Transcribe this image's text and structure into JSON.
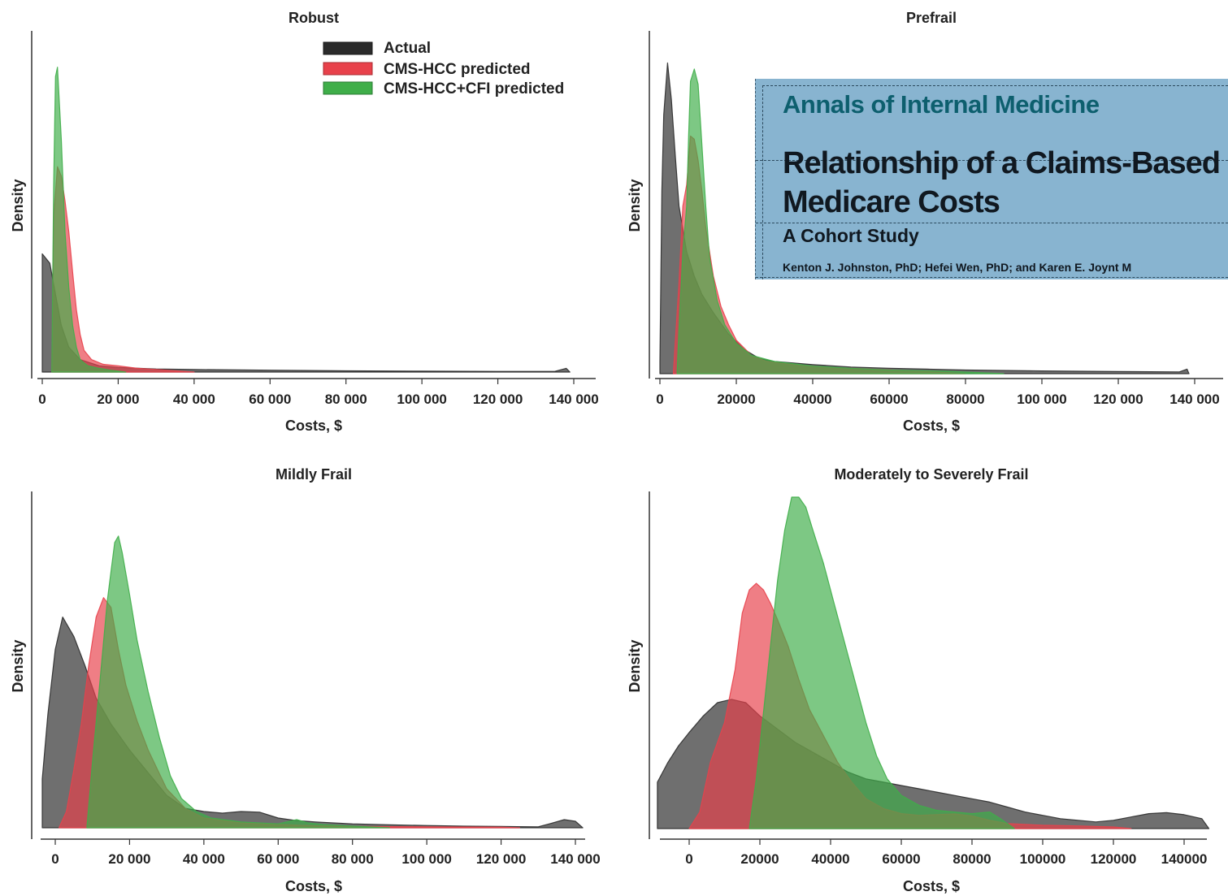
{
  "legend": {
    "items": [
      {
        "label": "Actual",
        "color": "#2b2b2b"
      },
      {
        "label": "CMS-HCC predicted",
        "color": "#e8414b"
      },
      {
        "label": "CMS-HCC+CFI predicted",
        "color": "#3fae49"
      }
    ]
  },
  "banner": {
    "journal": "Annals of Internal Medicine",
    "title_line1": "Relationship of a Claims-Based Frai",
    "title_line2": "Medicare Costs",
    "subtitle": "A Cohort Study",
    "authors": "Kenton J. Johnston, PhD; Hefei Wen, PhD; and Karen E. Joynt M",
    "background_color": "#88b4d0"
  },
  "chart_data": [
    {
      "type": "area",
      "title": "Robust",
      "xlabel": "Costs, $",
      "ylabel": "Density",
      "xlim": [
        -1000,
        145000
      ],
      "ylim": [
        0,
        1.0
      ],
      "xticks": [
        0,
        20000,
        40000,
        60000,
        80000,
        100000,
        120000,
        140000
      ],
      "xtick_labels": [
        "0",
        "20 000",
        "40 000",
        "60 000",
        "80 000",
        "100 000",
        "120 000",
        "140 000"
      ],
      "series": [
        {
          "name": "Actual",
          "color": "#2b2b2b",
          "x": [
            0,
            2000,
            3500,
            5000,
            7000,
            10000,
            15000,
            20000,
            30000,
            40000,
            60000,
            80000,
            100000,
            120000,
            135000,
            138000,
            139000
          ],
          "y": [
            0.38,
            0.35,
            0.25,
            0.15,
            0.08,
            0.04,
            0.02,
            0.015,
            0.01,
            0.008,
            0.006,
            0.004,
            0.003,
            0.002,
            0.002,
            0.012,
            0.0
          ]
        },
        {
          "name": "CMS-HCC predicted",
          "color": "#e8414b",
          "x": [
            2500,
            3000,
            4000,
            5000,
            6000,
            7000,
            8000,
            9000,
            10000,
            11000,
            13000,
            16000,
            20000,
            25000,
            30000,
            35000,
            40000
          ],
          "y": [
            0.0,
            0.5,
            0.66,
            0.63,
            0.55,
            0.45,
            0.32,
            0.2,
            0.12,
            0.07,
            0.04,
            0.025,
            0.02,
            0.012,
            0.008,
            0.004,
            0.0
          ]
        },
        {
          "name": "CMS-HCC+CFI predicted",
          "color": "#3fae49",
          "x": [
            2500,
            3000,
            3500,
            4000,
            5000,
            6000,
            7000,
            8000,
            9000,
            10000,
            12000,
            15000,
            18000,
            22000
          ],
          "y": [
            0.0,
            0.6,
            0.95,
            0.98,
            0.75,
            0.45,
            0.27,
            0.15,
            0.08,
            0.04,
            0.02,
            0.012,
            0.006,
            0.0
          ]
        }
      ]
    },
    {
      "type": "area",
      "title": "Prefrail",
      "xlabel": "Costs, $",
      "ylabel": "Density",
      "xlim": [
        -1000,
        145000
      ],
      "ylim": [
        0,
        1.0
      ],
      "xticks": [
        0,
        20000,
        40000,
        60000,
        80000,
        100000,
        120000,
        140000
      ],
      "xtick_labels": [
        "0",
        "20000",
        "40000",
        "60000",
        "80000",
        "100 000",
        "120 000",
        "140 000"
      ],
      "series": [
        {
          "name": "Actual",
          "color": "#2b2b2b",
          "x": [
            0,
            500,
            1000,
            2000,
            3000,
            4000,
            5000,
            7000,
            9000,
            11000,
            14000,
            18000,
            22000,
            26000,
            30000,
            35000,
            40000,
            50000,
            60000,
            70000,
            80000,
            100000,
            120000,
            136000,
            138000,
            138500
          ],
          "y": [
            0.04,
            0.6,
            0.85,
            1.02,
            0.9,
            0.72,
            0.55,
            0.4,
            0.32,
            0.26,
            0.2,
            0.13,
            0.08,
            0.05,
            0.04,
            0.035,
            0.03,
            0.022,
            0.018,
            0.015,
            0.012,
            0.009,
            0.007,
            0.006,
            0.015,
            0.0
          ]
        },
        {
          "name": "CMS-HCC predicted",
          "color": "#e8414b",
          "x": [
            3500,
            4000,
            5000,
            6000,
            7000,
            8000,
            9000,
            10000,
            11000,
            12000,
            14000,
            16000,
            18000,
            20000,
            24000,
            28000,
            35000,
            45000,
            55000,
            65000,
            80000
          ],
          "y": [
            0.0,
            0.1,
            0.3,
            0.55,
            0.62,
            0.78,
            0.77,
            0.7,
            0.6,
            0.48,
            0.32,
            0.22,
            0.16,
            0.11,
            0.06,
            0.04,
            0.03,
            0.02,
            0.015,
            0.01,
            0.0
          ]
        },
        {
          "name": "CMS-HCC+CFI predicted",
          "color": "#3fae49",
          "x": [
            4500,
            5000,
            6000,
            7000,
            7500,
            8000,
            9000,
            10000,
            11000,
            12000,
            13000,
            15000,
            17000,
            20000,
            24000,
            30000,
            40000,
            50000,
            60000,
            75000,
            90000
          ],
          "y": [
            0.0,
            0.15,
            0.4,
            0.55,
            0.78,
            0.96,
            1.0,
            0.95,
            0.75,
            0.55,
            0.38,
            0.24,
            0.16,
            0.1,
            0.06,
            0.04,
            0.025,
            0.018,
            0.012,
            0.008,
            0.0
          ]
        }
      ]
    },
    {
      "type": "area",
      "title": "Mildly Frail",
      "xlabel": "Costs, $",
      "ylabel": "Density",
      "xlim": [
        -3500,
        142000
      ],
      "ylim": [
        0,
        1.0
      ],
      "xticks": [
        0,
        20000,
        40000,
        60000,
        80000,
        100000,
        120000,
        140000
      ],
      "xtick_labels": [
        "0",
        "20 000",
        "40 000",
        "60 000",
        "80 000",
        "100 000",
        "120 000",
        "140 000"
      ],
      "series": [
        {
          "name": "Actual",
          "color": "#2b2b2b",
          "x": [
            -3500,
            -2000,
            0,
            2000,
            5000,
            8000,
            11000,
            15000,
            20000,
            25000,
            30000,
            35000,
            40000,
            45000,
            50000,
            55000,
            60000,
            65000,
            70000,
            80000,
            90000,
            100000,
            110000,
            120000,
            130000,
            133000,
            137000,
            140000,
            142000
          ],
          "y": [
            0.15,
            0.35,
            0.55,
            0.65,
            0.59,
            0.5,
            0.4,
            0.32,
            0.24,
            0.17,
            0.1,
            0.06,
            0.05,
            0.045,
            0.05,
            0.048,
            0.03,
            0.022,
            0.018,
            0.012,
            0.009,
            0.007,
            0.005,
            0.004,
            0.003,
            0.012,
            0.025,
            0.02,
            0.0
          ]
        },
        {
          "name": "CMS-HCC predicted",
          "color": "#e8414b",
          "x": [
            1000,
            3000,
            5000,
            7000,
            9000,
            11000,
            13000,
            15000,
            17000,
            19000,
            22000,
            25000,
            30000,
            35000,
            40000,
            50000,
            60000,
            70000,
            80000,
            100000,
            120000,
            125000
          ],
          "y": [
            0.0,
            0.05,
            0.18,
            0.32,
            0.5,
            0.65,
            0.71,
            0.68,
            0.55,
            0.44,
            0.33,
            0.24,
            0.12,
            0.06,
            0.03,
            0.015,
            0.01,
            0.006,
            0.004,
            0.003,
            0.002,
            0.0
          ]
        },
        {
          "name": "CMS-HCC+CFI predicted",
          "color": "#3fae49",
          "x": [
            8500,
            10000,
            12000,
            14000,
            16000,
            17000,
            18000,
            20000,
            22000,
            25000,
            28000,
            31000,
            34000,
            38000,
            42000,
            50000,
            60000,
            65000,
            68000,
            72000,
            80000,
            90000
          ],
          "y": [
            0.0,
            0.2,
            0.45,
            0.7,
            0.88,
            0.9,
            0.85,
            0.72,
            0.58,
            0.42,
            0.28,
            0.16,
            0.09,
            0.05,
            0.03,
            0.018,
            0.012,
            0.025,
            0.015,
            0.01,
            0.005,
            0.0
          ]
        }
      ]
    },
    {
      "type": "area",
      "title": "Moderately to Severely Frail",
      "xlabel": "Costs, $",
      "ylabel": "Density",
      "xlim": [
        -9000,
        147000
      ],
      "ylim": [
        0,
        1.0
      ],
      "xticks": [
        0,
        20000,
        40000,
        60000,
        80000,
        100000,
        120000,
        140000
      ],
      "xtick_labels": [
        "0",
        "20000",
        "40000",
        "60000",
        "80000",
        "100000",
        "120000",
        "140000"
      ],
      "series": [
        {
          "name": "Actual",
          "color": "#2b2b2b",
          "x": [
            -9000,
            -6000,
            -3000,
            0,
            4000,
            8000,
            12000,
            16000,
            20000,
            25000,
            30000,
            35000,
            40000,
            45000,
            50000,
            55000,
            60000,
            65000,
            70000,
            75000,
            80000,
            85000,
            90000,
            95000,
            100000,
            105000,
            110000,
            115000,
            120000,
            125000,
            130000,
            135000,
            140000,
            145000,
            147000
          ],
          "y": [
            0.14,
            0.2,
            0.25,
            0.29,
            0.34,
            0.38,
            0.39,
            0.38,
            0.34,
            0.3,
            0.26,
            0.23,
            0.2,
            0.17,
            0.15,
            0.14,
            0.13,
            0.12,
            0.11,
            0.1,
            0.09,
            0.08,
            0.065,
            0.05,
            0.04,
            0.03,
            0.025,
            0.02,
            0.025,
            0.035,
            0.045,
            0.048,
            0.042,
            0.03,
            0.0
          ]
        },
        {
          "name": "CMS-HCC predicted",
          "color": "#e8414b",
          "x": [
            0,
            3000,
            6000,
            10000,
            13000,
            15000,
            17000,
            19000,
            21000,
            23000,
            25000,
            28000,
            31000,
            34000,
            38000,
            42000,
            46000,
            50000,
            55000,
            60000,
            65000,
            70000,
            75000,
            80000,
            85000,
            90000,
            100000,
            110000,
            120000,
            125000
          ],
          "y": [
            0.0,
            0.05,
            0.2,
            0.32,
            0.48,
            0.65,
            0.72,
            0.74,
            0.72,
            0.68,
            0.63,
            0.55,
            0.45,
            0.36,
            0.28,
            0.2,
            0.14,
            0.09,
            0.06,
            0.045,
            0.04,
            0.042,
            0.044,
            0.038,
            0.025,
            0.015,
            0.01,
            0.008,
            0.005,
            0.0
          ]
        },
        {
          "name": "CMS-HCC+CFI predicted",
          "color": "#3fae49",
          "x": [
            17000,
            19000,
            21000,
            23000,
            25000,
            27000,
            29000,
            31000,
            33000,
            35000,
            38000,
            41000,
            44000,
            47000,
            50000,
            53000,
            56000,
            60000,
            65000,
            70000,
            75000,
            80000,
            85000,
            88000,
            92000
          ],
          "y": [
            0.0,
            0.15,
            0.35,
            0.55,
            0.75,
            0.9,
            1.0,
            1.0,
            0.97,
            0.9,
            0.8,
            0.68,
            0.56,
            0.44,
            0.32,
            0.22,
            0.15,
            0.1,
            0.07,
            0.055,
            0.05,
            0.045,
            0.05,
            0.03,
            0.0
          ]
        }
      ]
    }
  ]
}
